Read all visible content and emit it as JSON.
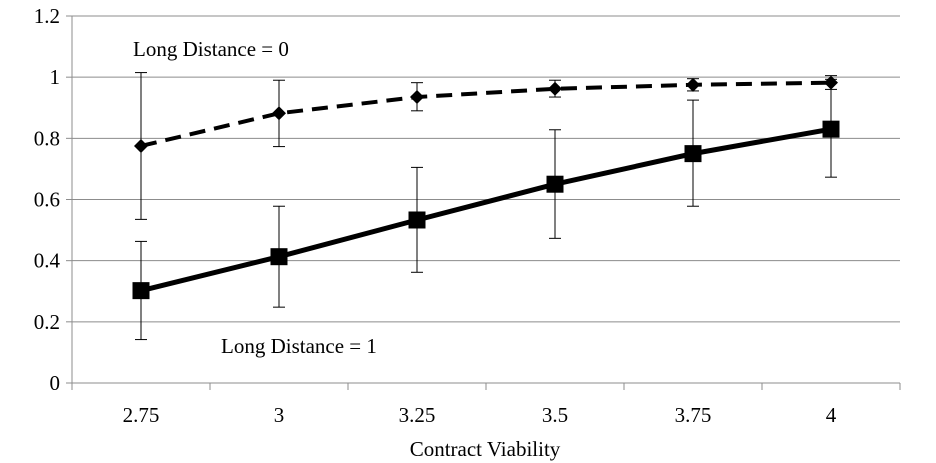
{
  "chart_data": {
    "type": "line",
    "title": "",
    "xlabel": "Contract Viability",
    "ylabel": "",
    "categories": [
      "2.75",
      "3",
      "3.25",
      "3.5",
      "3.75",
      "4"
    ],
    "ylim": [
      0,
      1.2
    ],
    "yticks": [
      "0",
      "0.2",
      "0.4",
      "0.6",
      "0.8",
      "1",
      "1.2"
    ],
    "grid": true,
    "series": [
      {
        "line_style": "dashed",
        "marker": "diamond",
        "values": [
          0.775,
          0.882,
          0.935,
          0.962,
          0.975,
          0.982
        ],
        "error_low": [
          0.535,
          0.773,
          0.89,
          0.935,
          0.955,
          0.96
        ],
        "error_high": [
          1.015,
          0.99,
          0.982,
          0.99,
          0.995,
          1.005
        ]
      },
      {
        "line_style": "solid",
        "marker": "square",
        "values": [
          0.302,
          0.413,
          0.533,
          0.65,
          0.75,
          0.83
        ],
        "error_low": [
          0.142,
          0.248,
          0.362,
          0.473,
          0.578,
          0.673
        ],
        "error_high": [
          0.463,
          0.578,
          0.705,
          0.828,
          0.925,
          0.993
        ]
      }
    ],
    "annotations": [
      "Long Distance = 0",
      "Long Distance = 1"
    ]
  }
}
